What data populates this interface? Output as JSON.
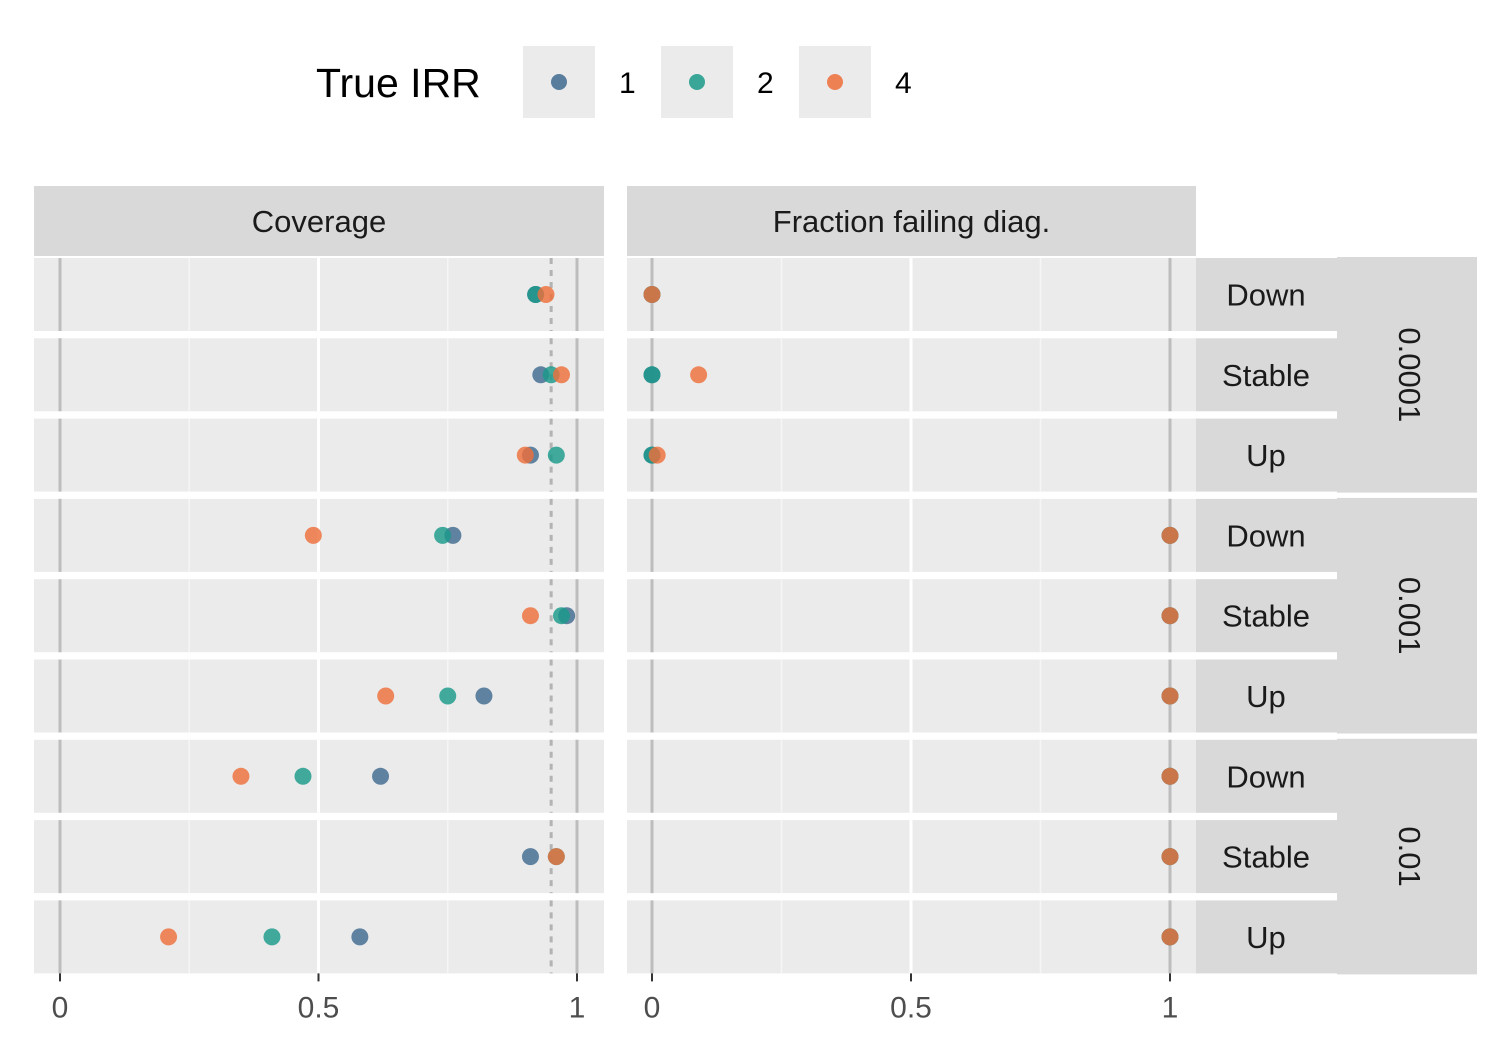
{
  "chart_data": {
    "type": "scatter",
    "legend": {
      "title": "True IRR",
      "position": "top",
      "entries": [
        {
          "label": "1",
          "color": "#3f6a8f"
        },
        {
          "label": "2",
          "color": "#1a9a8a"
        },
        {
          "label": "4",
          "color": "#ee6f3a"
        }
      ]
    },
    "panels": [
      {
        "title": "Coverage",
        "xlim": [
          -0.05,
          1.05
        ],
        "ticks": [
          0,
          0.5,
          1
        ],
        "tick_labels": [
          "0",
          "0.5",
          "1"
        ],
        "reference_line": 0.95
      },
      {
        "title": "Fraction failing diag.",
        "xlim": [
          -0.05,
          1.05
        ],
        "ticks": [
          0,
          0.5,
          1
        ],
        "tick_labels": [
          "0",
          "0.5",
          "1"
        ]
      }
    ],
    "row_groups": [
      {
        "label": "0.0001",
        "rows": [
          "Down",
          "Stable",
          "Up"
        ]
      },
      {
        "label": "0.001",
        "rows": [
          "Down",
          "Stable",
          "Up"
        ]
      },
      {
        "label": "0.01",
        "rows": [
          "Down",
          "Stable",
          "Up"
        ]
      }
    ],
    "series": [
      {
        "name": "1",
        "color": "#3f6a8f",
        "coverage": [
          0.92,
          0.93,
          0.91,
          0.76,
          0.98,
          0.82,
          0.62,
          0.91,
          0.58
        ],
        "fraction_failing": [
          0,
          0,
          0,
          1,
          1,
          1,
          1,
          1,
          1
        ]
      },
      {
        "name": "2",
        "color": "#1a9a8a",
        "coverage": [
          0.92,
          0.95,
          0.96,
          0.74,
          0.97,
          0.75,
          0.47,
          0.96,
          0.41
        ],
        "fraction_failing": [
          0,
          0,
          0,
          1,
          1,
          1,
          1,
          1,
          1
        ]
      },
      {
        "name": "4",
        "color": "#ee6f3a",
        "coverage": [
          0.94,
          0.97,
          0.9,
          0.49,
          0.91,
          0.63,
          0.35,
          0.96,
          0.21
        ],
        "fraction_failing": [
          0,
          0.09,
          0.01,
          1,
          1,
          1,
          1,
          1,
          1
        ]
      }
    ],
    "grid": true
  }
}
